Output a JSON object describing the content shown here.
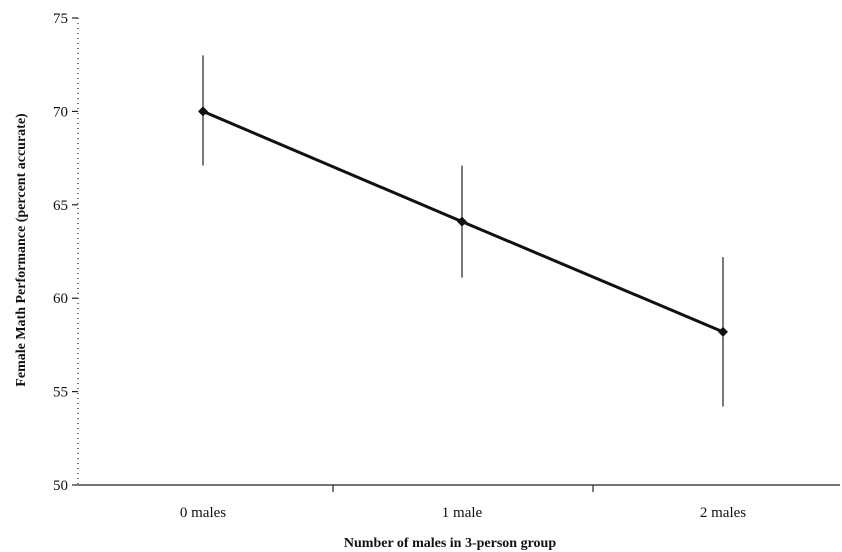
{
  "chart_data": {
    "type": "line",
    "categories": [
      "0 males",
      "1 male",
      "2 males"
    ],
    "series": [
      {
        "values": [
          70.0,
          64.1,
          58.2
        ],
        "error_low": [
          67.1,
          61.1,
          54.2
        ],
        "error_high": [
          73.0,
          67.1,
          62.2
        ]
      }
    ],
    "xlabel": "Number of males in 3-person group",
    "ylabel": "Female Math Performance (percent accurate)",
    "ylim": [
      50,
      75
    ],
    "yticks": [
      50,
      55,
      60,
      65,
      70,
      75
    ],
    "grid": false,
    "legend": "none"
  }
}
